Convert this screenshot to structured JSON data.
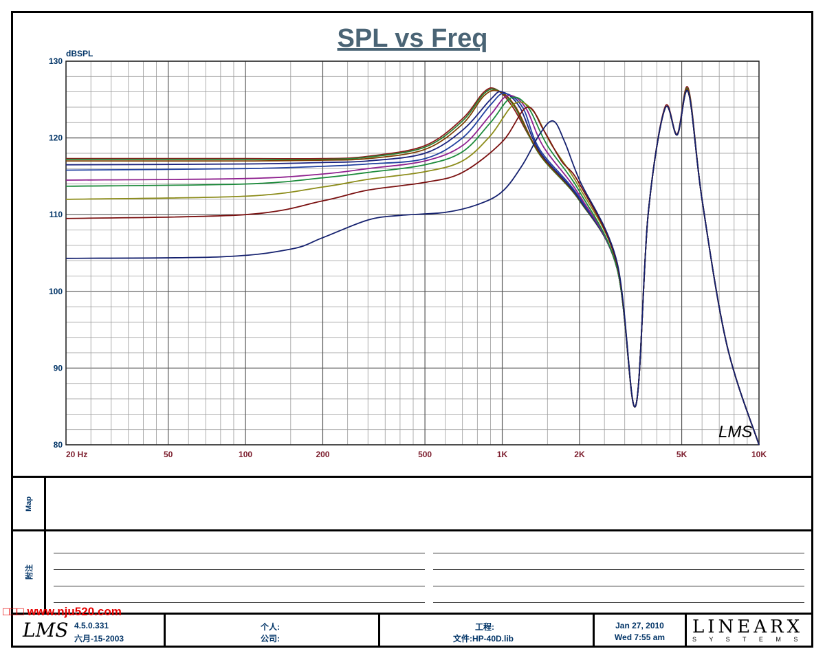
{
  "chart_data": {
    "type": "line",
    "title": "SPL vs Freq",
    "ylabel": "dBSPL",
    "xlabel": "",
    "x_scale": "log",
    "xlim": [
      20,
      10000
    ],
    "ylim": [
      80,
      130
    ],
    "x_ticks": [
      {
        "value": 20,
        "label": "20  Hz"
      },
      {
        "value": 50,
        "label": "50"
      },
      {
        "value": 100,
        "label": "100"
      },
      {
        "value": 200,
        "label": "200"
      },
      {
        "value": 500,
        "label": "500"
      },
      {
        "value": 1000,
        "label": "1K"
      },
      {
        "value": 2000,
        "label": "2K"
      },
      {
        "value": 5000,
        "label": "5K"
      },
      {
        "value": 10000,
        "label": "10K"
      }
    ],
    "y_ticks": [
      80,
      90,
      100,
      110,
      120,
      130
    ],
    "grid": true,
    "watermark_text": "LMS",
    "series": [
      {
        "color": "#8b1a1a",
        "points": [
          [
            20,
            117.3
          ],
          [
            100,
            117.3
          ],
          [
            200,
            117.3
          ],
          [
            300,
            117.6
          ],
          [
            500,
            119
          ],
          [
            700,
            122.5
          ],
          [
            850,
            126
          ],
          [
            950,
            126.3
          ],
          [
            1100,
            124
          ],
          [
            1400,
            118
          ],
          [
            2000,
            112
          ],
          [
            2800,
            103
          ],
          [
            3300,
            85
          ],
          [
            3700,
            110
          ],
          [
            4300,
            124
          ],
          [
            4800,
            120.5
          ],
          [
            5300,
            126.5
          ],
          [
            6000,
            112
          ],
          [
            7500,
            93
          ],
          [
            10000,
            80
          ]
        ]
      },
      {
        "color": "#2e7d32",
        "points": [
          [
            20,
            117.2
          ],
          [
            100,
            117.2
          ],
          [
            200,
            117.2
          ],
          [
            300,
            117.5
          ],
          [
            500,
            118.8
          ],
          [
            700,
            122.2
          ],
          [
            850,
            125.8
          ],
          [
            960,
            126.2
          ],
          [
            1120,
            124
          ],
          [
            1400,
            117.8
          ],
          [
            2000,
            111.8
          ],
          [
            2800,
            103
          ],
          [
            3300,
            85
          ],
          [
            3700,
            110
          ],
          [
            4300,
            123.8
          ],
          [
            4800,
            120.4
          ],
          [
            5300,
            126.3
          ],
          [
            6000,
            112
          ],
          [
            7500,
            93
          ],
          [
            10000,
            80
          ]
        ]
      },
      {
        "color": "#7b3f00",
        "points": [
          [
            20,
            117
          ],
          [
            100,
            117
          ],
          [
            200,
            117.1
          ],
          [
            300,
            117.3
          ],
          [
            500,
            118.5
          ],
          [
            700,
            121.8
          ],
          [
            850,
            125.5
          ],
          [
            970,
            126.1
          ],
          [
            1130,
            124
          ],
          [
            1400,
            117.9
          ],
          [
            2000,
            111.9
          ],
          [
            2800,
            103
          ],
          [
            3300,
            85
          ],
          [
            3700,
            110
          ],
          [
            4300,
            123.8
          ],
          [
            4800,
            120.4
          ],
          [
            5300,
            126.2
          ],
          [
            6000,
            112
          ],
          [
            7500,
            93
          ],
          [
            10000,
            80
          ]
        ]
      },
      {
        "color": "#1a237e",
        "points": [
          [
            20,
            116.5
          ],
          [
            100,
            116.6
          ],
          [
            200,
            116.8
          ],
          [
            300,
            117
          ],
          [
            500,
            118
          ],
          [
            700,
            121
          ],
          [
            900,
            125
          ],
          [
            1000,
            126
          ],
          [
            1170,
            124
          ],
          [
            1400,
            118.2
          ],
          [
            2000,
            112
          ],
          [
            2800,
            103
          ],
          [
            3300,
            85
          ],
          [
            3700,
            110
          ],
          [
            4300,
            123.8
          ],
          [
            4800,
            120.4
          ],
          [
            5300,
            126
          ],
          [
            6000,
            112
          ],
          [
            7500,
            93
          ],
          [
            10000,
            80
          ]
        ]
      },
      {
        "color": "#1f3f9f",
        "points": [
          [
            20,
            115.8
          ],
          [
            100,
            116
          ],
          [
            200,
            116.3
          ],
          [
            300,
            116.6
          ],
          [
            500,
            117.3
          ],
          [
            700,
            120
          ],
          [
            900,
            124.3
          ],
          [
            1020,
            125.8
          ],
          [
            1200,
            124
          ],
          [
            1400,
            118.5
          ],
          [
            2000,
            112.2
          ],
          [
            2800,
            103
          ],
          [
            3300,
            85
          ],
          [
            3700,
            110
          ],
          [
            4300,
            123.8
          ],
          [
            4800,
            120.4
          ],
          [
            5300,
            126
          ],
          [
            6000,
            112
          ],
          [
            7500,
            93
          ],
          [
            10000,
            80
          ]
        ]
      },
      {
        "color": "#8e1f8e",
        "points": [
          [
            20,
            114.5
          ],
          [
            100,
            114.7
          ],
          [
            200,
            115.3
          ],
          [
            300,
            116
          ],
          [
            500,
            117
          ],
          [
            700,
            119
          ],
          [
            900,
            123
          ],
          [
            1050,
            125.5
          ],
          [
            1230,
            124
          ],
          [
            1450,
            118.8
          ],
          [
            2000,
            112.5
          ],
          [
            2800,
            103
          ],
          [
            3300,
            85
          ],
          [
            3700,
            110
          ],
          [
            4300,
            123.8
          ],
          [
            4800,
            120.4
          ],
          [
            5300,
            126
          ],
          [
            6000,
            112
          ],
          [
            7500,
            93
          ],
          [
            10000,
            80
          ]
        ]
      },
      {
        "color": "#1b8a3a",
        "points": [
          [
            20,
            113.7
          ],
          [
            100,
            114
          ],
          [
            200,
            114.8
          ],
          [
            300,
            115.5
          ],
          [
            500,
            116.5
          ],
          [
            700,
            118.2
          ],
          [
            900,
            122
          ],
          [
            1080,
            125.2
          ],
          [
            1260,
            124
          ],
          [
            1500,
            119
          ],
          [
            2000,
            113
          ],
          [
            2800,
            103
          ],
          [
            3300,
            85
          ],
          [
            3700,
            110
          ],
          [
            4300,
            123.8
          ],
          [
            4800,
            120.4
          ],
          [
            5300,
            126
          ],
          [
            6000,
            112
          ],
          [
            7500,
            93
          ],
          [
            10000,
            80
          ]
        ]
      },
      {
        "color": "#8c8c1a",
        "points": [
          [
            20,
            112
          ],
          [
            100,
            112.4
          ],
          [
            200,
            113.6
          ],
          [
            300,
            114.6
          ],
          [
            500,
            115.6
          ],
          [
            700,
            117
          ],
          [
            900,
            120.3
          ],
          [
            1120,
            124.5
          ],
          [
            1320,
            123.5
          ],
          [
            1550,
            119.2
          ],
          [
            2000,
            113.5
          ],
          [
            2800,
            103.5
          ],
          [
            3300,
            85
          ],
          [
            3700,
            110
          ],
          [
            4300,
            123.8
          ],
          [
            4800,
            120.4
          ],
          [
            5300,
            126
          ],
          [
            6000,
            112
          ],
          [
            7500,
            93
          ],
          [
            10000,
            80
          ]
        ]
      },
      {
        "color": "#7a1010",
        "points": [
          [
            20,
            109.5
          ],
          [
            100,
            110
          ],
          [
            200,
            111.8
          ],
          [
            300,
            113.2
          ],
          [
            500,
            114.2
          ],
          [
            700,
            115.5
          ],
          [
            1000,
            119.5
          ],
          [
            1250,
            124
          ],
          [
            1450,
            121
          ],
          [
            1700,
            117
          ],
          [
            2000,
            114
          ],
          [
            2800,
            103.5
          ],
          [
            3300,
            85
          ],
          [
            3700,
            110
          ],
          [
            4300,
            123.8
          ],
          [
            4800,
            120.4
          ],
          [
            5300,
            126
          ],
          [
            6000,
            112
          ],
          [
            7500,
            93
          ],
          [
            10000,
            80
          ]
        ]
      },
      {
        "color": "#14206e",
        "points": [
          [
            20,
            104.3
          ],
          [
            80,
            104.5
          ],
          [
            150,
            105.5
          ],
          [
            200,
            107
          ],
          [
            300,
            109.3
          ],
          [
            400,
            109.9
          ],
          [
            600,
            110.3
          ],
          [
            800,
            111.3
          ],
          [
            1000,
            113
          ],
          [
            1200,
            116.5
          ],
          [
            1400,
            120.5
          ],
          [
            1580,
            122.2
          ],
          [
            1750,
            119.5
          ],
          [
            2000,
            114.5
          ],
          [
            2800,
            103.8
          ],
          [
            3300,
            85
          ],
          [
            3700,
            110
          ],
          [
            4300,
            123.8
          ],
          [
            4800,
            120.4
          ],
          [
            5300,
            126
          ],
          [
            6000,
            112
          ],
          [
            7500,
            93
          ],
          [
            10000,
            80
          ]
        ]
      }
    ]
  },
  "panels": {
    "map_label": "Map",
    "notes_label": "附注"
  },
  "footer": {
    "logo": "LMS",
    "version": "4.5.0.331",
    "build_date": "六月-15-2003",
    "person_label": "个人:",
    "company_label": "公司:",
    "project_label": "工程:",
    "file_label": "文件:HP-40D.lib",
    "date": "Jan 27, 2010",
    "time": "Wed  7:55 am",
    "brand_main": "LINEARX",
    "brand_sub": "S Y S T E M S"
  },
  "watermark": "□□□ www.nju520.com"
}
